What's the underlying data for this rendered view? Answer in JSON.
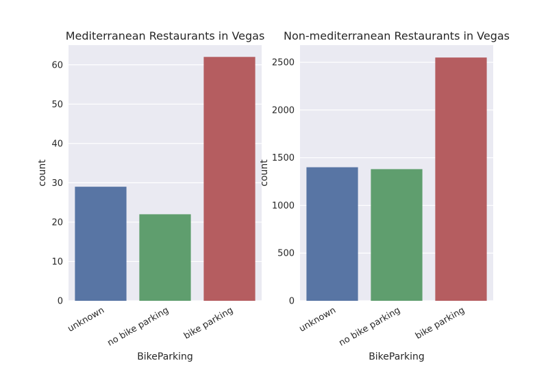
{
  "chart_data": [
    {
      "type": "bar",
      "title": "Mediterranean Restaurants in Vegas",
      "xlabel": "BikeParking",
      "ylabel": "count",
      "categories": [
        "unknown",
        "no bike parking",
        "bike parking"
      ],
      "values": [
        29,
        22,
        62
      ],
      "colors": [
        "#5875a4",
        "#5f9e6e",
        "#b55d60"
      ],
      "ylim": [
        0,
        65
      ],
      "yticks": [
        0,
        10,
        20,
        30,
        40,
        50,
        60
      ],
      "grid": true
    },
    {
      "type": "bar",
      "title": "Non-mediterranean Restaurants in Vegas",
      "xlabel": "BikeParking",
      "ylabel": "count",
      "categories": [
        "unknown",
        "no bike parking",
        "bike parking"
      ],
      "values": [
        1400,
        1380,
        2550
      ],
      "colors": [
        "#5875a4",
        "#5f9e6e",
        "#b55d60"
      ],
      "ylim": [
        0,
        2680
      ],
      "yticks": [
        0,
        500,
        1000,
        1500,
        2000,
        2500
      ],
      "grid": true
    }
  ],
  "background": "#eaeaf2",
  "grid_color": "#ffffff"
}
